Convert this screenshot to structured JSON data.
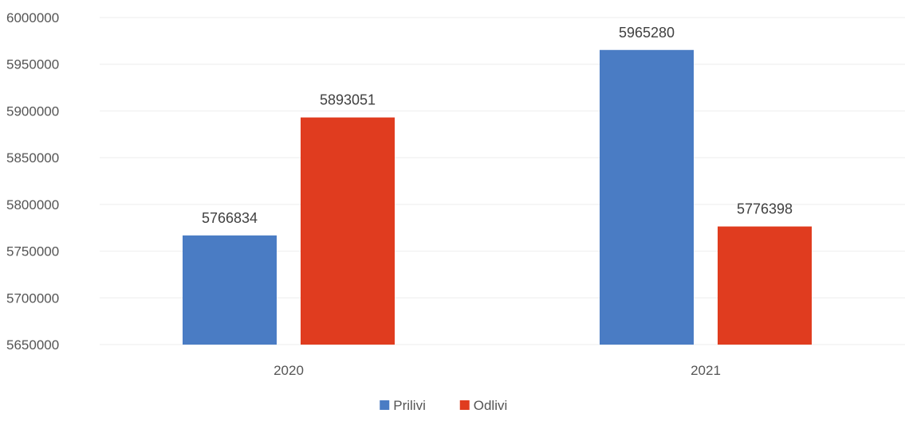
{
  "chart_data": {
    "type": "bar",
    "categories": [
      "2020",
      "2021"
    ],
    "series": [
      {
        "name": "Prilivi",
        "values": [
          5766834,
          5965280
        ],
        "color": "#4a7cc4"
      },
      {
        "name": "Odlivi",
        "values": [
          5893051,
          5776398
        ],
        "color": "#e03c1f"
      }
    ],
    "ylim": [
      5650000,
      6000000
    ],
    "yticks": [
      "5650000",
      "5700000",
      "5750000",
      "5800000",
      "5850000",
      "5900000",
      "5950000",
      "6000000"
    ],
    "grid": true,
    "legend_position": "bottom",
    "xlabel": "",
    "ylabel": ""
  }
}
